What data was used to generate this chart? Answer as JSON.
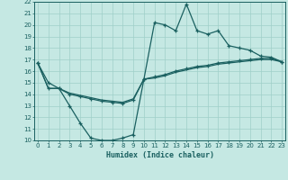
{
  "xlabel": "Humidex (Indice chaleur)",
  "xlim": [
    -0.3,
    23.3
  ],
  "ylim": [
    10,
    22
  ],
  "xticks": [
    0,
    1,
    2,
    3,
    4,
    5,
    6,
    7,
    8,
    9,
    10,
    11,
    12,
    13,
    14,
    15,
    16,
    17,
    18,
    19,
    20,
    21,
    22,
    23
  ],
  "yticks": [
    10,
    11,
    12,
    13,
    14,
    15,
    16,
    17,
    18,
    19,
    20,
    21,
    22
  ],
  "bg_color": "#c5e8e3",
  "grid_color": "#9fcfc8",
  "line_color": "#1a6060",
  "curve1_x": [
    0,
    1,
    2,
    3,
    4,
    5,
    6,
    7,
    8,
    9,
    10,
    11,
    12,
    13,
    14,
    15,
    16,
    17,
    18,
    19,
    20,
    21,
    22,
    23
  ],
  "curve1_y": [
    16.7,
    15.0,
    14.5,
    13.0,
    11.5,
    10.2,
    10.0,
    10.0,
    10.2,
    10.5,
    15.3,
    20.2,
    20.0,
    19.5,
    21.8,
    19.5,
    19.2,
    19.5,
    18.2,
    18.0,
    17.8,
    17.3,
    17.2,
    16.8
  ],
  "curve2_x": [
    0,
    1,
    2,
    3,
    4,
    5,
    6,
    7,
    8,
    9,
    10,
    11,
    12,
    13,
    14,
    15,
    16,
    17,
    18,
    19,
    20,
    21,
    22,
    23
  ],
  "curve2_y": [
    16.7,
    14.5,
    14.5,
    14.0,
    13.8,
    13.6,
    13.4,
    13.3,
    13.2,
    13.5,
    15.3,
    15.5,
    15.7,
    16.0,
    16.2,
    16.4,
    16.5,
    16.7,
    16.8,
    16.9,
    17.0,
    17.1,
    17.1,
    16.8
  ],
  "curve3_x": [
    0,
    1,
    2,
    3,
    4,
    5,
    6,
    7,
    8,
    9,
    10,
    11,
    12,
    13,
    14,
    15,
    16,
    17,
    18,
    19,
    20,
    21,
    22,
    23
  ],
  "curve3_y": [
    16.7,
    14.5,
    14.5,
    14.1,
    13.9,
    13.7,
    13.5,
    13.4,
    13.3,
    13.6,
    15.3,
    15.4,
    15.6,
    15.9,
    16.1,
    16.3,
    16.4,
    16.6,
    16.7,
    16.8,
    16.9,
    17.0,
    17.0,
    16.8
  ]
}
